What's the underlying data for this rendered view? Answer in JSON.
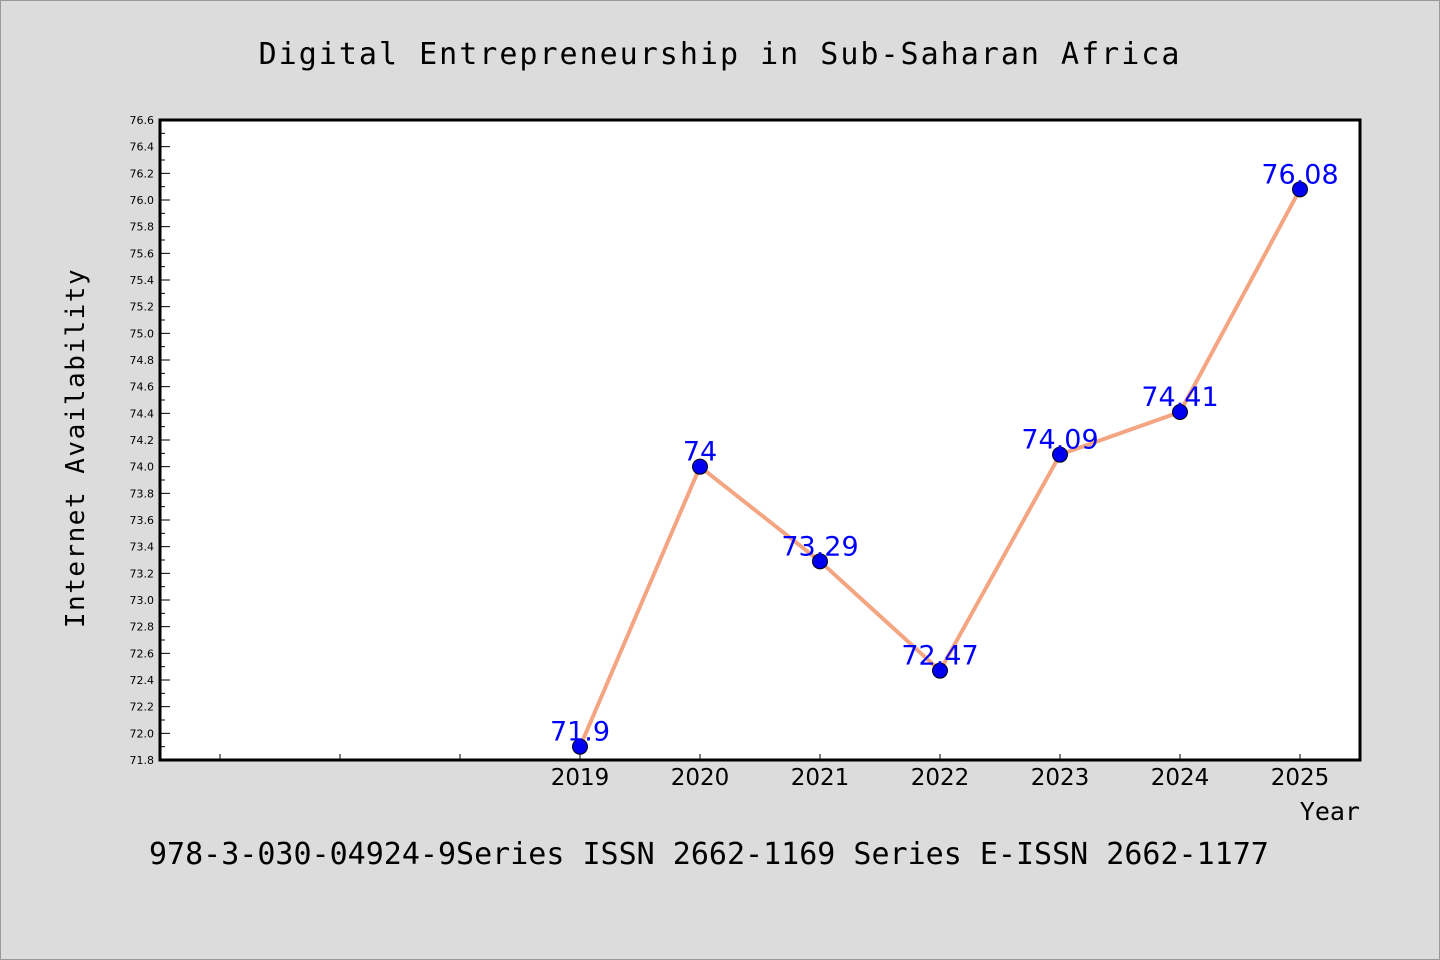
{
  "chart_data": {
    "type": "line",
    "title": "Digital Entrepreneurship in Sub-Saharan Africa",
    "xlabel": "Year",
    "ylabel": "Internet Availability",
    "x": [
      "2019",
      "2020",
      "2021",
      "2022",
      "2023",
      "2024",
      "2025"
    ],
    "series": [
      {
        "values": [
          71.9,
          74,
          73.29,
          72.47,
          74.09,
          74.41,
          76.08
        ],
        "labels": [
          "71.9",
          "74",
          "73.29",
          "72.47",
          "74.09",
          "74.41",
          "76.08"
        ]
      }
    ],
    "ylim": [
      71.8,
      76.6
    ],
    "ytick_step": 0.2,
    "extra_empty_x_slots": 3,
    "grid": false,
    "legend": "none",
    "colors": {
      "line": "#f4a582",
      "marker": "#0000ee",
      "data_label": "#0000ff",
      "text": "#000000",
      "plot_background": "#ffffff",
      "figure_background": "#dcdcdc"
    }
  },
  "footer": {
    "caption": "978-3-030-04924-9Series ISSN 2662-1169 Series E-ISSN 2662-1177"
  }
}
